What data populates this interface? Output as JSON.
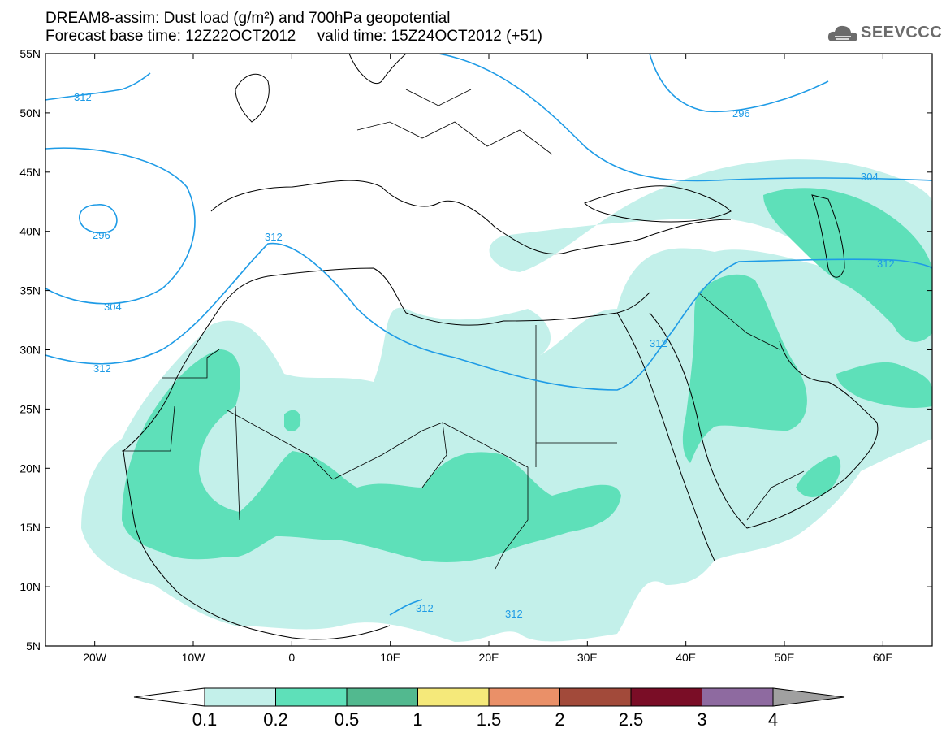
{
  "title": {
    "line1": "DREAM8-assim: Dust load (g/m²) and 700hPa geopotential",
    "line2": "Forecast base time: 12Z22OCT2012     valid time: 15Z24OCT2012 (+51)"
  },
  "logo": {
    "text": "SEEVCCC",
    "icon": "cloud-icon"
  },
  "map": {
    "lon_range": [
      -25,
      65
    ],
    "lat_range": [
      5,
      55
    ],
    "lat_ticks": [
      {
        "value": 55,
        "label": "55N"
      },
      {
        "value": 50,
        "label": "50N"
      },
      {
        "value": 45,
        "label": "45N"
      },
      {
        "value": 40,
        "label": "40N"
      },
      {
        "value": 35,
        "label": "35N"
      },
      {
        "value": 30,
        "label": "30N"
      },
      {
        "value": 25,
        "label": "25N"
      },
      {
        "value": 20,
        "label": "20N"
      },
      {
        "value": 15,
        "label": "15N"
      },
      {
        "value": 10,
        "label": "10N"
      },
      {
        "value": 5,
        "label": "5N"
      }
    ],
    "lon_ticks": [
      {
        "value": -20,
        "label": "20W"
      },
      {
        "value": -10,
        "label": "10W"
      },
      {
        "value": 0,
        "label": "0"
      },
      {
        "value": 10,
        "label": "10E"
      },
      {
        "value": 20,
        "label": "20E"
      },
      {
        "value": 30,
        "label": "30E"
      },
      {
        "value": 40,
        "label": "40E"
      },
      {
        "value": 50,
        "label": "50E"
      },
      {
        "value": 60,
        "label": "60E"
      }
    ],
    "contour_labels": [
      "312",
      "296",
      "304",
      "312",
      "312",
      "296",
      "304",
      "312",
      "312",
      "312",
      "312"
    ],
    "contour_color": "#1e9be6"
  },
  "colorbar": {
    "labels": [
      "0.1",
      "0.2",
      "0.5",
      "1",
      "1.5",
      "2",
      "2.5",
      "3",
      "4"
    ],
    "colors": [
      "#c3f0ea",
      "#5ee0b9",
      "#52b98f",
      "#f5e97a",
      "#ea9068",
      "#a24a3a",
      "#7a0d26",
      "#8e6aa0"
    ],
    "below_color": "#ffffff",
    "above_color": "#a0a0a0"
  }
}
